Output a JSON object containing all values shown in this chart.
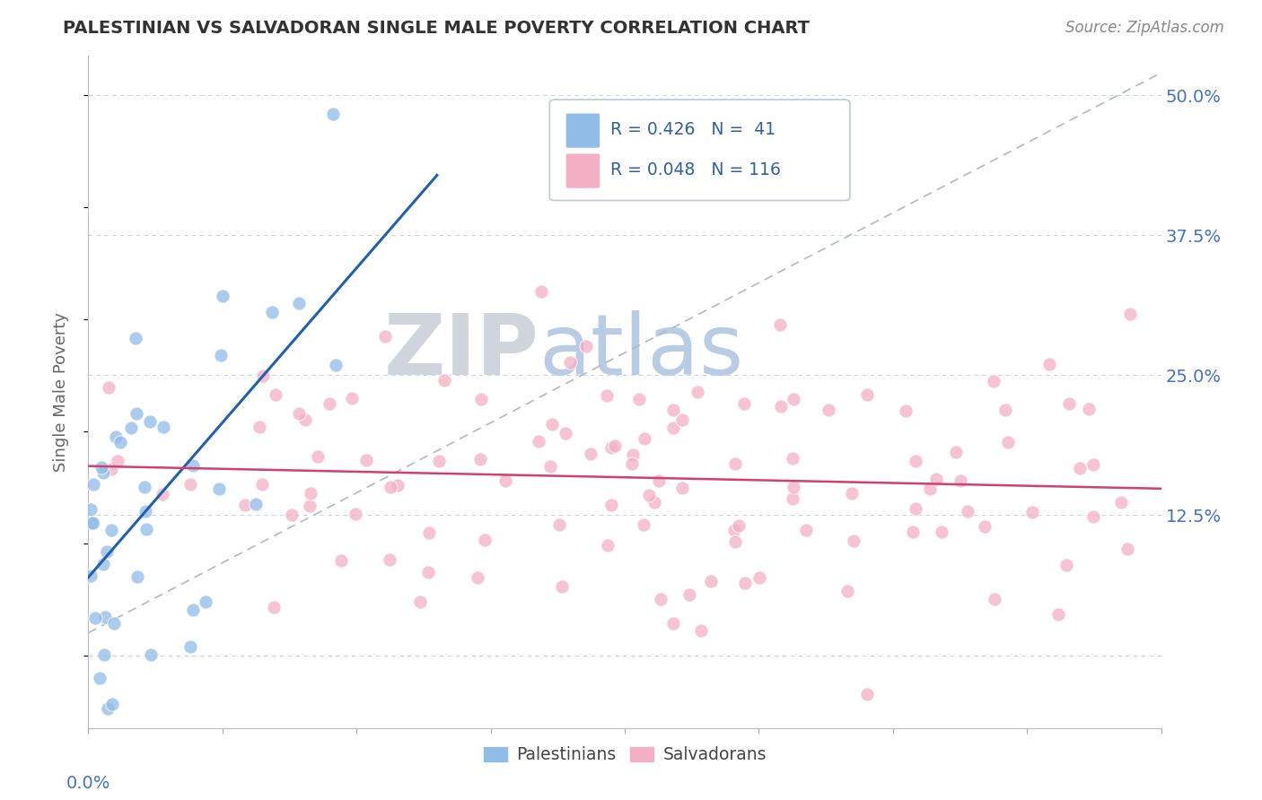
{
  "title": "PALESTINIAN VS SALVADORAN SINGLE MALE POVERTY CORRELATION CHART",
  "source": "Source: ZipAtlas.com",
  "ylabel": "Single Male Poverty",
  "yticks_labels": [
    "12.5%",
    "25.0%",
    "37.5%",
    "50.0%"
  ],
  "ytick_vals": [
    0.125,
    0.25,
    0.375,
    0.5
  ],
  "xlim": [
    0.0,
    0.4
  ],
  "ylim": [
    -0.065,
    0.535
  ],
  "r_palestinian": 0.426,
  "n_palestinian": 41,
  "r_salvadoran": 0.048,
  "n_salvadoran": 116,
  "color_palestinian": "#90bce8",
  "color_salvadoran": "#f4afc5",
  "color_line_palestinian": "#2060b0",
  "color_line_salvadoran": "#d04070",
  "color_grid": "#c8d4e8",
  "color_title": "#333333",
  "color_source": "#888888",
  "color_axis_label": "#666666",
  "color_tick_label": "#4472c4",
  "background_color": "#ffffff",
  "watermark_zip_color": "#d0d4dc",
  "watermark_atlas_color": "#b8cce4",
  "legend_border_color": "#c0c8d8",
  "legend_text_color": "#3060a0"
}
